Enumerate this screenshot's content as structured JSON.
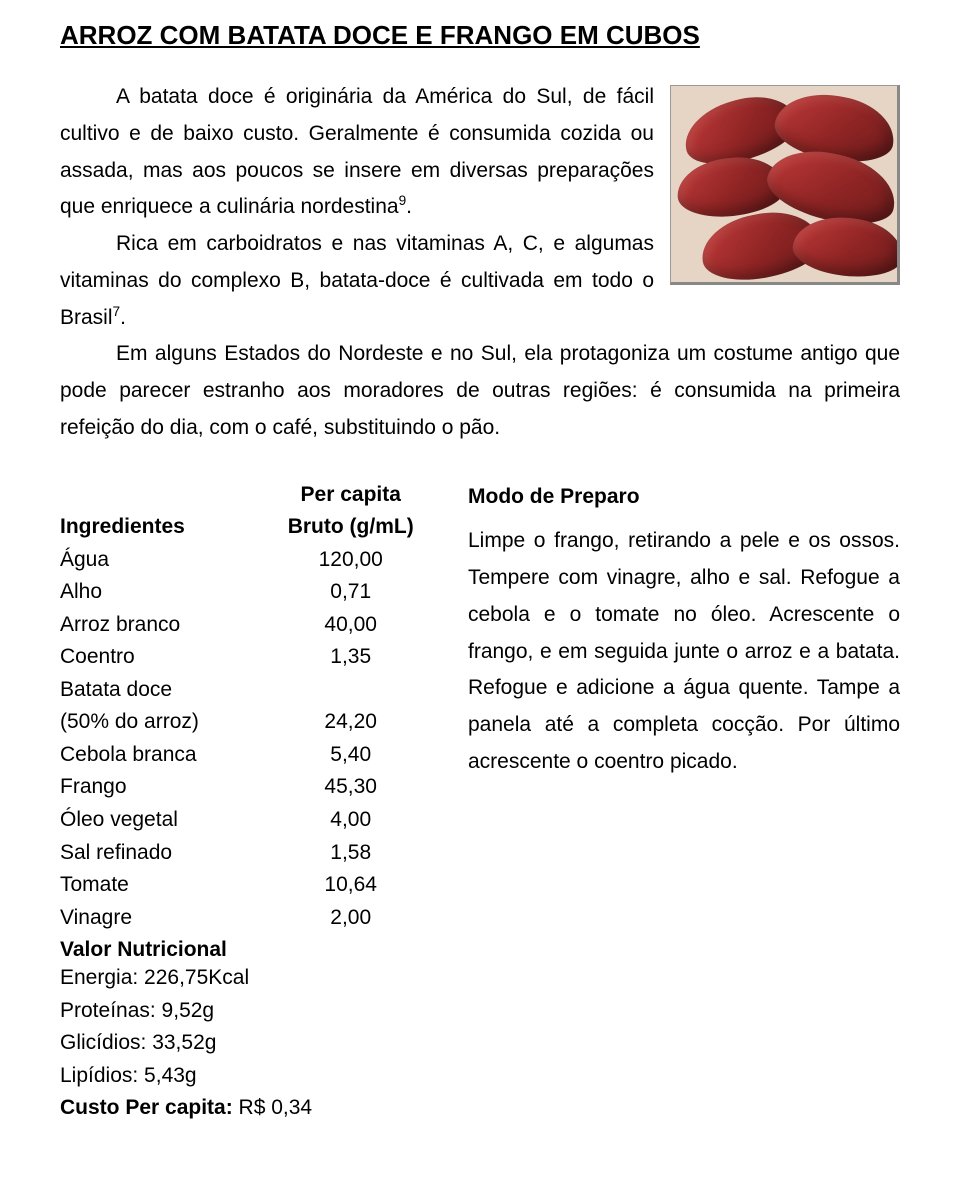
{
  "title": "ARROZ COM BATATA DOCE E FRANGO EM CUBOS",
  "intro": {
    "p1a": "A batata doce é originária da América do Sul, de fácil cultivo e de baixo custo. Geralmente é consumida cozida ou assada, mas aos poucos se insere em diversas preparações que enriquece a culinária nordestina",
    "sup1": "9",
    "p1b": ".",
    "p2a": "Rica em carboidratos e nas vitaminas A, C, e algumas vitaminas do complexo B, batata-doce é cultivada em todo o Brasil",
    "sup2": "7",
    "p2b": ".",
    "p3": "Em alguns Estados do Nordeste e no Sul, ela protagoniza um costume antigo que pode parecer estranho aos moradores de outras regiões: é consumida na primeira refeição do dia, com o café, substituindo o pão."
  },
  "ingredients": {
    "header_name": "Ingredientes",
    "header_value_line1": "Per capita",
    "header_value_line2": "Bruto (g/mL)",
    "rows": [
      {
        "name": "Água",
        "value": "120,00"
      },
      {
        "name": "Alho",
        "value": "0,71"
      },
      {
        "name": "Arroz branco",
        "value": "40,00"
      },
      {
        "name": "Coentro",
        "value": "1,35"
      },
      {
        "name": "Batata doce",
        "value": ""
      },
      {
        "name": "(50% do arroz)",
        "value": "24,20"
      },
      {
        "name": "Cebola branca",
        "value": "5,40"
      },
      {
        "name": "Frango",
        "value": "45,30"
      },
      {
        "name": "Óleo vegetal",
        "value": "4,00"
      },
      {
        "name": "Sal refinado",
        "value": "1,58"
      },
      {
        "name": "Tomate",
        "value": "10,64"
      },
      {
        "name": "Vinagre",
        "value": "2,00"
      }
    ]
  },
  "nutrition": {
    "title": "Valor Nutricional",
    "lines": [
      "Energia: 226,75Kcal",
      "Proteínas: 9,52g",
      "Glicídios: 33,52g",
      "Lipídios: 5,43g"
    ]
  },
  "cost": {
    "label": "Custo Per capita: ",
    "value": "R$ 0,34"
  },
  "preparation": {
    "title": "Modo de Preparo",
    "body": "Limpe o frango, retirando a pele e os ossos. Tempere com vinagre, alho e sal. Refogue a cebola e o tomate no óleo. Acrescente o frango, e em seguida junte o arroz e a batata. Refogue e adicione a água quente. Tampe a panela até a completa cocção. Por último acrescente o coentro picado."
  },
  "colors": {
    "text": "#000000",
    "background": "#ffffff"
  }
}
